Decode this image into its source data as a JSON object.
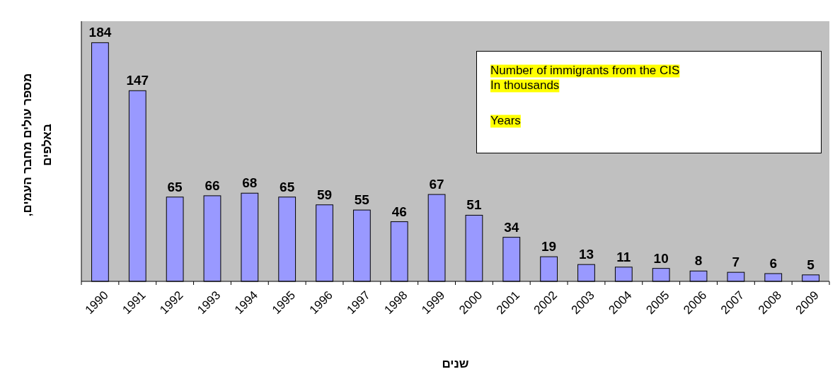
{
  "chart_data": {
    "type": "bar",
    "categories": [
      "1990",
      "1991",
      "1992",
      "1993",
      "1994",
      "1995",
      "1996",
      "1997",
      "1998",
      "1999",
      "2000",
      "2001",
      "2002",
      "2003",
      "2004",
      "2005",
      "2006",
      "2007",
      "2008",
      "2009"
    ],
    "values": [
      184,
      147,
      65,
      66,
      68,
      65,
      59,
      55,
      46,
      67,
      51,
      34,
      19,
      13,
      11,
      10,
      8,
      7,
      6,
      5
    ],
    "color": "#9999ff",
    "data_labels": true,
    "xlabel": "שנים",
    "ylabel": "מספר עולים מחבר העמים, באלפים",
    "annotations": [
      "Number of immigrants from the CIS",
      "In thousands",
      "Years"
    ]
  }
}
